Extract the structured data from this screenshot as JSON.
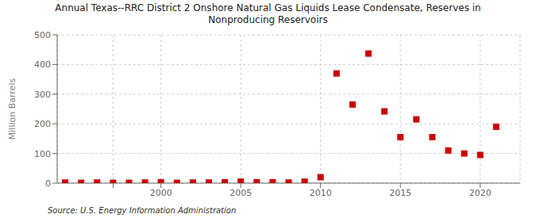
{
  "chart_data": {
    "type": "scatter",
    "title": "Annual Texas--RRC District 2 Onshore Natural Gas Liquids Lease Condensate, Reserves in\nNonproducing Reservoirs",
    "ylabel": "Million Barrels",
    "annotations": [
      "Source: U.S. Energy Information Administration"
    ],
    "x": [
      1994,
      1995,
      1996,
      1997,
      1998,
      1999,
      2000,
      2001,
      2002,
      2003,
      2004,
      2005,
      2006,
      2007,
      2008,
      2009,
      2010,
      2011,
      2012,
      2013,
      2014,
      2015,
      2016,
      2017,
      2018,
      2019,
      2020,
      2021
    ],
    "values": [
      2,
      1,
      2,
      1,
      1,
      2,
      3,
      1,
      2,
      2,
      3,
      5,
      3,
      3,
      2,
      5,
      20,
      370,
      265,
      437,
      242,
      155,
      215,
      155,
      110,
      100,
      95,
      190
    ],
    "color": "#cc0000",
    "marker": "square",
    "xlim": [
      1993.5,
      2022.5
    ],
    "ylim": [
      0,
      500
    ],
    "yticks": [
      0,
      100,
      200,
      300,
      400,
      500
    ],
    "xticks": [
      {
        "value": 1997,
        "label": null
      },
      2000,
      2005,
      2010,
      2015,
      2020
    ],
    "grid": true
  }
}
